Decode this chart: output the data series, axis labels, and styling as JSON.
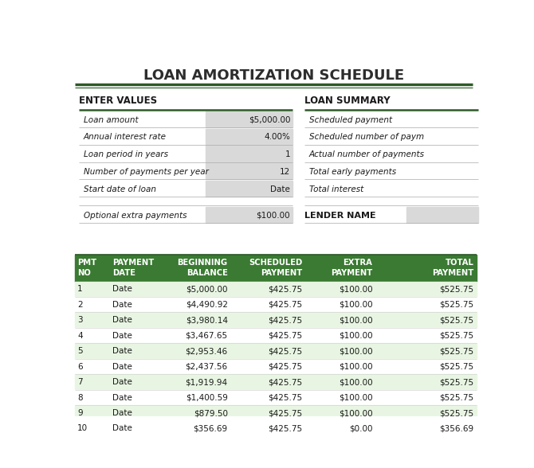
{
  "title": "LOAN AMORTIZATION SCHEDULE",
  "title_color": "#2d2d2d",
  "dark_green": "#2d5a27",
  "header_green": "#3a7a32",
  "light_green_row": "#e8f5e2",
  "white_row": "#ffffff",
  "gray_cell": "#d9d9d9",
  "enter_values_label": "ENTER VALUES",
  "loan_summary_label": "LOAN SUMMARY",
  "lender_name_label": "LENDER NAME",
  "enter_fields": [
    [
      "Loan amount",
      "$5,000.00"
    ],
    [
      "Annual interest rate",
      "4.00%"
    ],
    [
      "Loan period in years",
      "1"
    ],
    [
      "Number of payments per year",
      "12"
    ],
    [
      "Start date of loan",
      "Date"
    ]
  ],
  "extra_payment_label": "Optional extra payments",
  "extra_payment_value": "$100.00",
  "loan_summary_fields": [
    "Scheduled payment",
    "Scheduled number of paym",
    "Actual number of payments",
    "Total early payments",
    "Total interest"
  ],
  "table_headers": [
    "PMT\nNO",
    "PAYMENT\nDATE",
    "BEGINNING\nBALANCE",
    "SCHEDULED\nPAYMENT",
    "EXTRA\nPAYMENT",
    "TOTAL\nPAYMENT"
  ],
  "table_data": [
    [
      "1",
      "Date",
      "$5,000.00",
      "$425.75",
      "$100.00",
      "$525.75"
    ],
    [
      "2",
      "Date",
      "$4,490.92",
      "$425.75",
      "$100.00",
      "$525.75"
    ],
    [
      "3",
      "Date",
      "$3,980.14",
      "$425.75",
      "$100.00",
      "$525.75"
    ],
    [
      "4",
      "Date",
      "$3,467.65",
      "$425.75",
      "$100.00",
      "$525.75"
    ],
    [
      "5",
      "Date",
      "$2,953.46",
      "$425.75",
      "$100.00",
      "$525.75"
    ],
    [
      "6",
      "Date",
      "$2,437.56",
      "$425.75",
      "$100.00",
      "$525.75"
    ],
    [
      "7",
      "Date",
      "$1,919.94",
      "$425.75",
      "$100.00",
      "$525.75"
    ],
    [
      "8",
      "Date",
      "$1,400.59",
      "$425.75",
      "$100.00",
      "$525.75"
    ],
    [
      "9",
      "Date",
      "$879.50",
      "$425.75",
      "$100.00",
      "$525.75"
    ],
    [
      "10",
      "Date",
      "$356.69",
      "$425.75",
      "$0.00",
      "$356.69"
    ]
  ],
  "col_aligns": [
    "left",
    "left",
    "right",
    "right",
    "right",
    "right"
  ],
  "background_color": "#ffffff"
}
